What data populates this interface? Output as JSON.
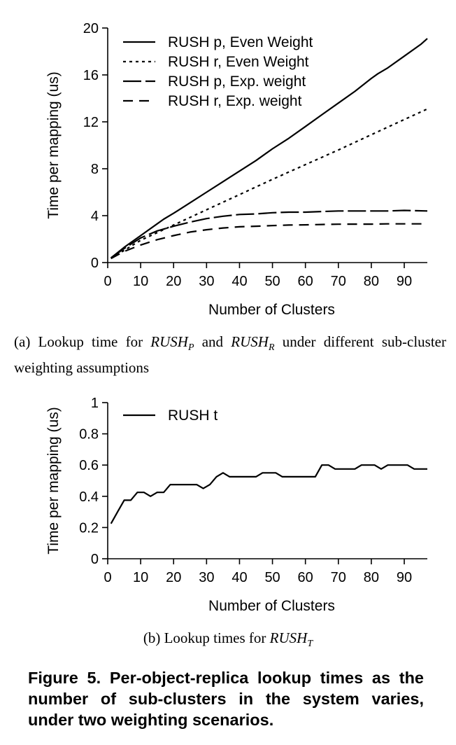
{
  "chart_data": [
    {
      "type": "line",
      "title": "",
      "xlabel": "Number of Clusters",
      "ylabel": "Time per mapping (us)",
      "xlim": [
        0,
        97
      ],
      "ylim": [
        0,
        20
      ],
      "xticks": [
        0,
        10,
        20,
        30,
        40,
        50,
        60,
        70,
        80,
        90
      ],
      "yticks": [
        0,
        4,
        8,
        12,
        16,
        20
      ],
      "legend_position": "top-left",
      "series": [
        {
          "name": "RUSH p, Even Weight",
          "style": "solid",
          "x": [
            1,
            5,
            10,
            15,
            17,
            20,
            25,
            30,
            35,
            40,
            45,
            50,
            55,
            60,
            65,
            70,
            75,
            80,
            82,
            85,
            90,
            95,
            97
          ],
          "y": [
            0.4,
            1.3,
            2.3,
            3.3,
            3.7,
            4.2,
            5.1,
            6.0,
            6.9,
            7.8,
            8.7,
            9.7,
            10.6,
            11.6,
            12.6,
            13.6,
            14.6,
            15.7,
            16.1,
            16.6,
            17.6,
            18.6,
            19.1
          ]
        },
        {
          "name": "RUSH r, Even Weight",
          "style": "dotted",
          "x": [
            1,
            10,
            20,
            30,
            40,
            50,
            60,
            70,
            80,
            90,
            97
          ],
          "y": [
            0.35,
            1.9,
            3.2,
            4.5,
            5.8,
            7.1,
            8.35,
            9.6,
            10.9,
            12.2,
            13.1
          ]
        },
        {
          "name": "RUSH p, Exp. weight",
          "style": "long-dash",
          "x": [
            1,
            5,
            10,
            15,
            20,
            25,
            30,
            35,
            40,
            45,
            50,
            55,
            60,
            65,
            70,
            75,
            80,
            85,
            90,
            97
          ],
          "y": [
            0.4,
            1.2,
            2.1,
            2.7,
            3.1,
            3.45,
            3.75,
            3.95,
            4.1,
            4.15,
            4.25,
            4.3,
            4.3,
            4.35,
            4.4,
            4.4,
            4.4,
            4.4,
            4.45,
            4.4
          ]
        },
        {
          "name": "RUSH r, Exp. weight",
          "style": "dashed",
          "x": [
            1,
            5,
            10,
            15,
            20,
            25,
            30,
            35,
            40,
            45,
            50,
            55,
            60,
            65,
            70,
            75,
            80,
            85,
            90,
            97
          ],
          "y": [
            0.35,
            0.95,
            1.5,
            1.95,
            2.3,
            2.6,
            2.8,
            2.95,
            3.05,
            3.1,
            3.15,
            3.2,
            3.22,
            3.25,
            3.27,
            3.28,
            3.28,
            3.3,
            3.3,
            3.3
          ]
        }
      ]
    },
    {
      "type": "line",
      "title": "",
      "xlabel": "Number of Clusters",
      "ylabel": "Time per mapping (us)",
      "xlim": [
        0,
        97
      ],
      "ylim": [
        0,
        1
      ],
      "xticks": [
        0,
        10,
        20,
        30,
        40,
        50,
        60,
        70,
        80,
        90
      ],
      "yticks": [
        0,
        0.2,
        0.4,
        0.6,
        0.8,
        1
      ],
      "ytick_labels": [
        "0",
        "0.2",
        "0.4",
        "0.6",
        "0.8",
        "1"
      ],
      "legend_position": "top-left",
      "series": [
        {
          "name": "RUSH t",
          "style": "solid",
          "x": [
            1,
            3,
            5,
            7,
            9,
            11,
            13,
            15,
            17,
            19,
            21,
            23,
            25,
            27,
            29,
            31,
            33,
            35,
            37,
            39,
            41,
            43,
            45,
            47,
            49,
            51,
            53,
            55,
            57,
            59,
            61,
            63,
            65,
            67,
            69,
            71,
            73,
            75,
            77,
            79,
            81,
            83,
            85,
            87,
            89,
            91,
            93,
            95,
            97
          ],
          "y": [
            0.225,
            0.3,
            0.375,
            0.375,
            0.425,
            0.425,
            0.4,
            0.425,
            0.425,
            0.475,
            0.475,
            0.475,
            0.475,
            0.475,
            0.45,
            0.475,
            0.525,
            0.55,
            0.525,
            0.525,
            0.525,
            0.525,
            0.525,
            0.55,
            0.55,
            0.55,
            0.525,
            0.525,
            0.525,
            0.525,
            0.525,
            0.525,
            0.6,
            0.6,
            0.575,
            0.575,
            0.575,
            0.575,
            0.6,
            0.6,
            0.6,
            0.575,
            0.6,
            0.6,
            0.6,
            0.6,
            0.575,
            0.575,
            0.575
          ]
        }
      ]
    }
  ],
  "captions": {
    "a_prefix": "(a) Lookup time for ",
    "a_rush1": "RUSH",
    "a_rush1_sub": "P",
    "a_mid": " and ",
    "a_rush2": "RUSH",
    "a_rush2_sub": "R",
    "a_suffix": " under different sub-cluster weighting assumptions",
    "b_prefix": "(b) Lookup times for ",
    "b_rush": "RUSH",
    "b_rush_sub": "T"
  },
  "figure_caption": "Figure 5. Per-object-replica lookup times as the number of sub-clusters in the system varies, under two weighting scenarios."
}
